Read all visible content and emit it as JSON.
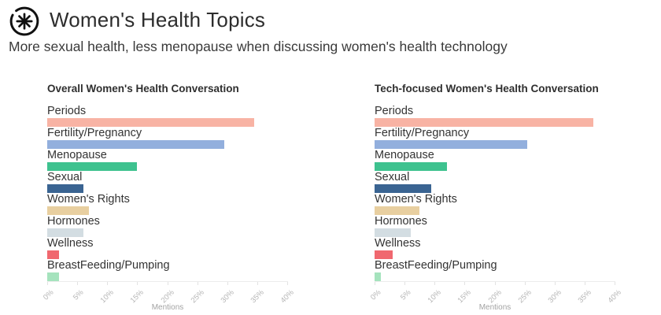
{
  "header": {
    "logo_icon": "asterisk-circle-logo",
    "title": "Women's Health Topics",
    "subtitle": "More sexual health, less menopause when discussing women's health technology"
  },
  "chart_data": [
    {
      "type": "bar",
      "orientation": "horizontal",
      "title": "Overall Women's Health Conversation",
      "xlabel": "Mentions",
      "xlim": [
        0,
        40
      ],
      "xticks": [
        "0%",
        "5%",
        "10%",
        "15%",
        "20%",
        "25%",
        "30%",
        "35%",
        "40%"
      ],
      "grid": false,
      "legend": "none",
      "categories": [
        "Periods",
        "Fertility/Pregnancy",
        "Menopause",
        "Sexual",
        "Women's Rights",
        "Hormones",
        "Wellness",
        "BreastFeeding/Pumping"
      ],
      "values": [
        34.5,
        29.5,
        15,
        6,
        7,
        6,
        2,
        2
      ],
      "colors": [
        "#f8b3a4",
        "#92afdd",
        "#3ec28f",
        "#3a6492",
        "#e8cfa0",
        "#d3dde2",
        "#f0686f",
        "#a5e3bd"
      ]
    },
    {
      "type": "bar",
      "orientation": "horizontal",
      "title": "Tech-focused Women's Health Conversation",
      "xlabel": "Mentions",
      "xlim": [
        0,
        40
      ],
      "xticks": [
        "0%",
        "5%",
        "10%",
        "15%",
        "20%",
        "25%",
        "30%",
        "35%",
        "40%"
      ],
      "grid": false,
      "legend": "none",
      "categories": [
        "Periods",
        "Fertility/Pregnancy",
        "Menopause",
        "Sexual",
        "Women's Rights",
        "Hormones",
        "Wellness",
        "BreastFeeding/Pumping"
      ],
      "values": [
        36.5,
        25.5,
        12,
        9.5,
        7.5,
        6,
        3,
        1
      ],
      "colors": [
        "#f8b3a4",
        "#92afdd",
        "#3ec28f",
        "#3a6492",
        "#e8cfa0",
        "#d3dde2",
        "#f0686f",
        "#a5e3bd"
      ]
    }
  ],
  "style": {
    "background": "#ffffff",
    "title_color": "#2d2d2d",
    "subtitle_color": "#3a3a3a",
    "category_label_color": "#333333",
    "axis_line_color": "#ececec",
    "axis_tick_color": "#b5b5b5",
    "xlabel_color": "#a3a3a3",
    "logo_color": "#111111"
  }
}
